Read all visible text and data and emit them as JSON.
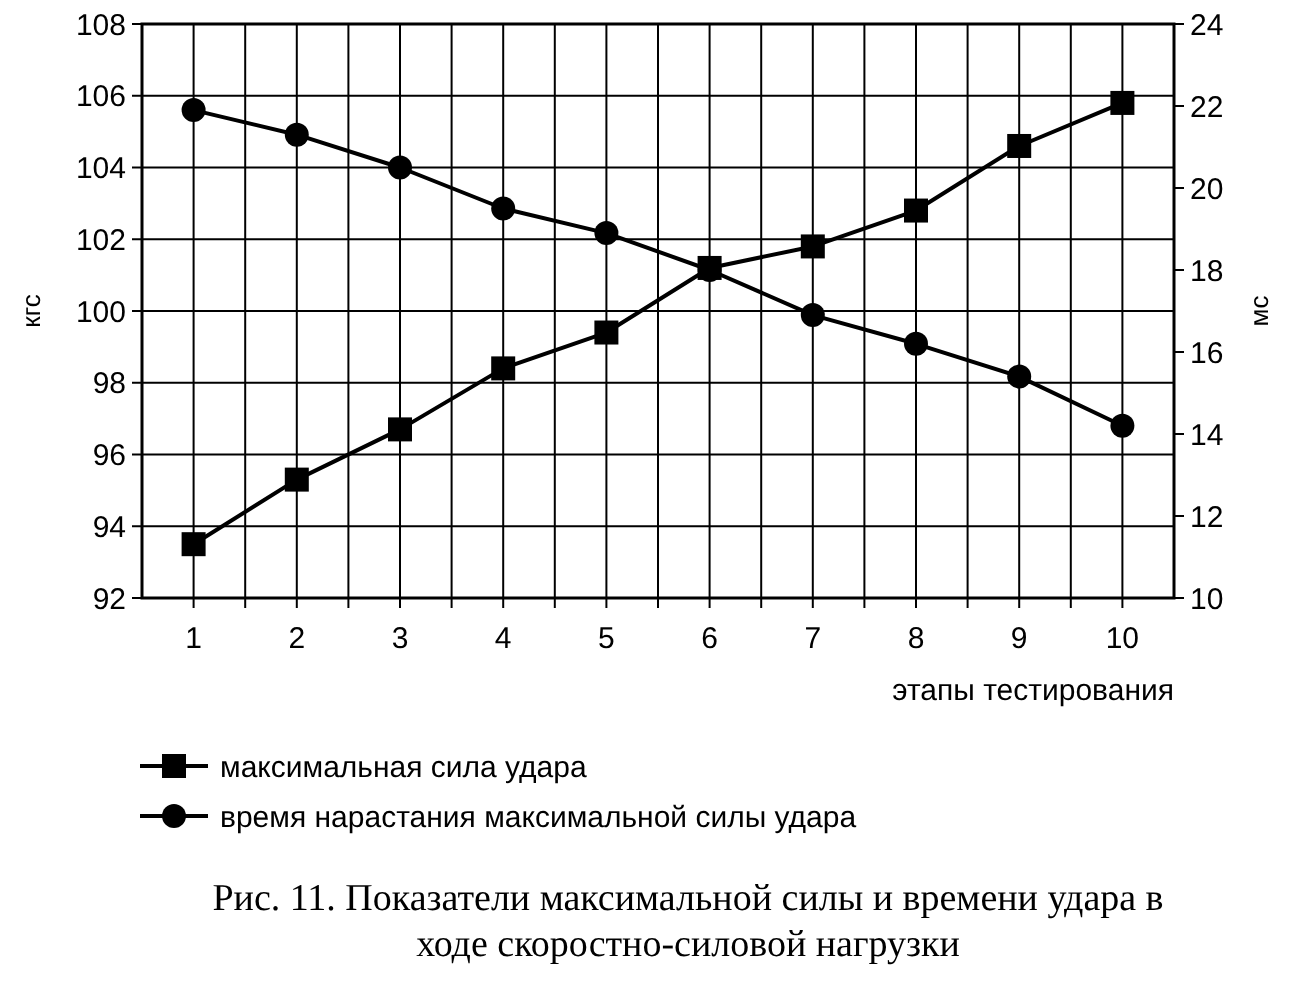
{
  "chart_data": {
    "type": "line",
    "title": "Рис. 11. Показатели максимальной силы и времени удара в ходе скоростно-силовой нагрузки",
    "xlabel": "этапы тестирования",
    "ylabel": "кгс",
    "y2label": "мс",
    "x": [
      1,
      2,
      3,
      4,
      5,
      6,
      7,
      8,
      9,
      10
    ],
    "xlim": [
      0.5,
      10.5
    ],
    "xticks": [
      1,
      {
        "value": 1.5,
        "label": null
      },
      2,
      {
        "value": 2.5,
        "label": null
      },
      3,
      {
        "value": 3.5,
        "label": null
      },
      4,
      {
        "value": 4.5,
        "label": null
      },
      5,
      {
        "value": 5.5,
        "label": null
      },
      6,
      {
        "value": 6.5,
        "label": null
      },
      7,
      {
        "value": 7.5,
        "label": null
      },
      8,
      {
        "value": 8.5,
        "label": null
      },
      9,
      {
        "value": 9.5,
        "label": null
      },
      10
    ],
    "ylim": [
      92,
      108
    ],
    "yticks": [
      92,
      94,
      96,
      98,
      100,
      102,
      104,
      106,
      108
    ],
    "y2lim": [
      10,
      24
    ],
    "y2ticks": [
      10,
      12,
      14,
      16,
      18,
      20,
      22,
      24
    ],
    "grid": true,
    "legend": "bottom",
    "line_style": "solid",
    "series": [
      {
        "name": "максимальная сила удара",
        "color": "#000000",
        "marker": "square",
        "values": [
          93.5,
          95.3,
          96.7,
          98.4,
          99.4,
          101.2,
          101.8,
          102.8,
          104.6,
          105.8
        ]
      },
      {
        "name": "время нарастания максимальной силы удара",
        "color": "#000000",
        "marker": "circle",
        "axis": "y2",
        "values": [
          21.9,
          21.3,
          20.5,
          19.5,
          18.9,
          18.0,
          16.9,
          16.2,
          15.4,
          14.2
        ]
      }
    ]
  }
}
